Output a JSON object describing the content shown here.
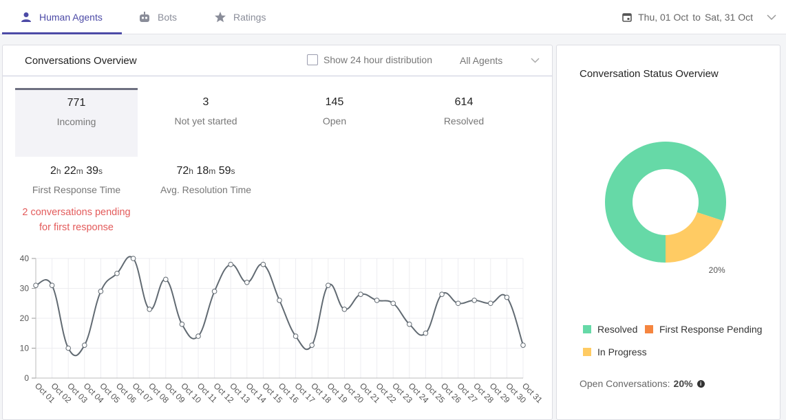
{
  "tabs": [
    {
      "label": "Human Agents",
      "icon": "person-icon"
    },
    {
      "label": "Bots",
      "icon": "robot-icon"
    },
    {
      "label": "Ratings",
      "icon": "star-icon"
    }
  ],
  "date_range": {
    "from": "Thu, 01 Oct",
    "sep": "to",
    "to": "Sat, 31 Oct"
  },
  "overview": {
    "title": "Conversations Overview",
    "distribution_label": "Show 24 hour distribution",
    "agent_filter": "All Agents",
    "metrics": [
      {
        "value": "771",
        "label": "Incoming"
      },
      {
        "value": "3",
        "label": "Not yet started"
      },
      {
        "value": "145",
        "label": "Open"
      },
      {
        "value": "614",
        "label": "Resolved"
      }
    ],
    "first_response": {
      "h": "2",
      "m": "22",
      "s": "39",
      "label": "First Response Time"
    },
    "resolution": {
      "h": "72",
      "m": "18",
      "s": "59",
      "label": "Avg. Resolution Time"
    },
    "units": {
      "h": "h",
      "m": "m",
      "s": "s"
    },
    "pending_line1": "2 conversations pending",
    "pending_line2": "for first response"
  },
  "chart_data": [
    {
      "type": "line",
      "x": [
        "Oct 01",
        "Oct 02",
        "Oct 03",
        "Oct 04",
        "Oct 05",
        "Oct 06",
        "Oct 07",
        "Oct 08",
        "Oct 09",
        "Oct 10",
        "Oct 11",
        "Oct 12",
        "Oct 13",
        "Oct 14",
        "Oct 15",
        "Oct 16",
        "Oct 17",
        "Oct 18",
        "Oct 19",
        "Oct 20",
        "Oct 21",
        "Oct 22",
        "Oct 23",
        "Oct 24",
        "Oct 25",
        "Oct 26",
        "Oct 27",
        "Oct 28",
        "Oct 29",
        "Oct 30",
        "Oct 31"
      ],
      "values": [
        31,
        31,
        10,
        11,
        29,
        35,
        40,
        23,
        33,
        18,
        14,
        29,
        38,
        32,
        38,
        26,
        14,
        11,
        31,
        23,
        28,
        26,
        25,
        18,
        15,
        28,
        25,
        26,
        25,
        27,
        11
      ],
      "y_ticks": [
        0,
        10,
        20,
        30,
        40
      ],
      "ylim": [
        0,
        40
      ],
      "grid": true
    },
    {
      "type": "pie",
      "title": "Conversation Status Overview",
      "series": [
        {
          "name": "Resolved",
          "value": 80,
          "color": "#66d9a7",
          "label": "80%"
        },
        {
          "name": "First Response Pending",
          "value": 0,
          "color": "#f5853f"
        },
        {
          "name": "In Progress",
          "value": 20,
          "color": "#ffcb63",
          "label": "20%"
        }
      ],
      "open_label": "Open Conversations:",
      "open_value": "20%"
    }
  ]
}
